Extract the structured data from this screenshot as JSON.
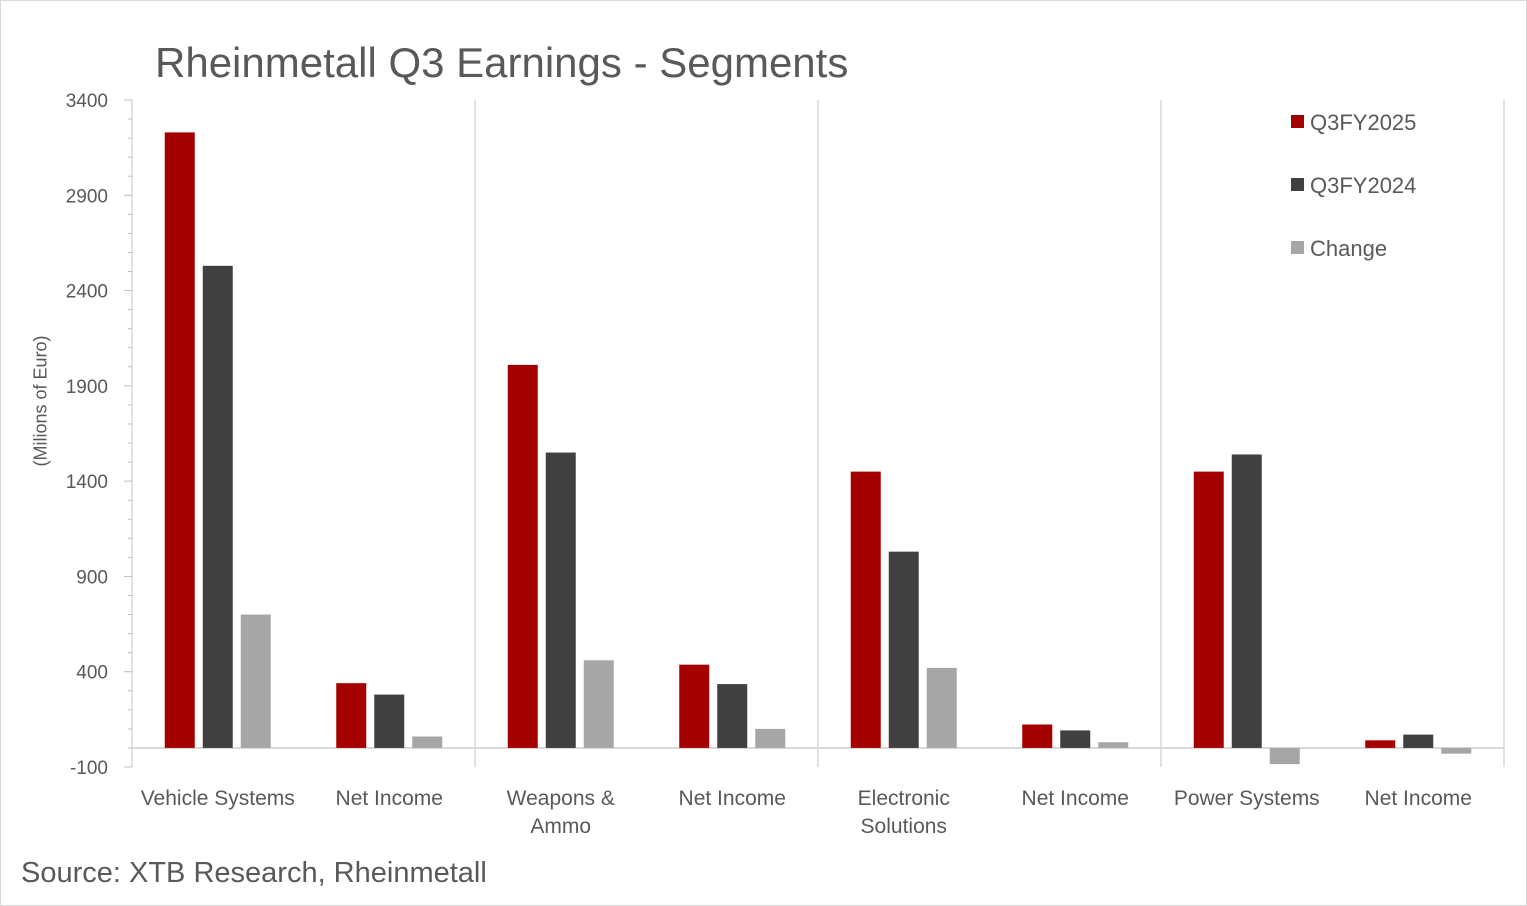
{
  "title": "Rheinmetall Q3 Earnings - Segments",
  "source": "Source: XTB Research, Rheinmetall",
  "chart_data": {
    "type": "bar",
    "title": "Rheinmetall Q3 Earnings - Segments",
    "xlabel": "",
    "ylabel": "(Milions of Euro)",
    "ylim": [
      -100,
      3400
    ],
    "yticks": [
      3400,
      2900,
      2400,
      1900,
      1400,
      900,
      400,
      -100
    ],
    "grid": false,
    "legend_position": "top-right",
    "categories": [
      "Vehicle Systems",
      "Net Income",
      "Weapons & Ammo",
      "Net Income",
      "Electronic Solutions",
      "Net Income",
      "Power Systems",
      "Net Income"
    ],
    "category_lines": [
      [
        "Vehicle Systems"
      ],
      [
        "Net Income"
      ],
      [
        "Weapons &",
        "Ammo"
      ],
      [
        "Net Income"
      ],
      [
        "Electronic",
        "Solutions"
      ],
      [
        "Net Income"
      ],
      [
        "Power Systems"
      ],
      [
        "Net Income"
      ]
    ],
    "series": [
      {
        "name": "Q3FY2025",
        "color": "#a50000",
        "values": [
          3230,
          340,
          2010,
          437,
          1450,
          123,
          1450,
          40
        ]
      },
      {
        "name": "Q3FY2024",
        "color": "#404040",
        "values": [
          2530,
          280,
          1550,
          335,
          1030,
          92,
          1540,
          70
        ]
      },
      {
        "name": "Change",
        "color": "#a6a6a6",
        "values": [
          700,
          60,
          460,
          100,
          420,
          30,
          -85,
          -30
        ]
      }
    ]
  }
}
